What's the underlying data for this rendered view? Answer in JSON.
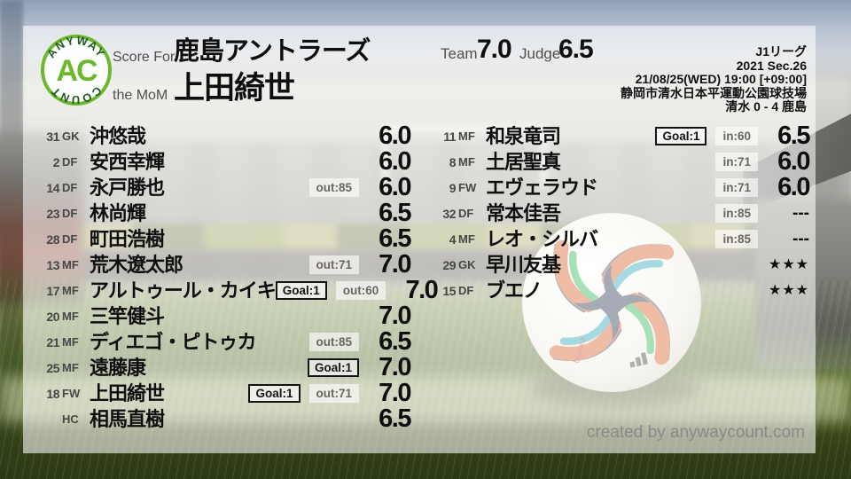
{
  "colors": {
    "brand_green": "#6cb82d",
    "logo_arc_green": "#1e5c22",
    "badge_border": "#141414",
    "text_primary": "#0e0e0e",
    "label_gray": "#4f4f4f",
    "sub_badge_gray": "#6a6661",
    "credit_gray": "#8a8a8a"
  },
  "logo": {
    "arc_top": "ANYWAY",
    "arc_bottom": "COUNT",
    "monogram": "AC"
  },
  "header": {
    "score_for_label": "Score For",
    "team_name": "鹿島アントラーズ",
    "mom_label": "the MoM",
    "mom_name": "上田綺世",
    "team_label": "Team",
    "team_score": "7.0",
    "judge_label": "Judge",
    "judge_score": "6.5"
  },
  "match_info": {
    "league": "J1リーグ",
    "round": "2021 Sec.26",
    "kickoff": "21/08/25(WED) 19:00 [+09:00]",
    "venue": "静岡市清水日本平運動公園球技場",
    "score_line": "清水 0 - 4 鹿島"
  },
  "columns": {
    "left": [
      {
        "number": "31",
        "position": "GK",
        "name": "沖悠哉",
        "badges": [],
        "rating": "6.0",
        "rating_style": "score"
      },
      {
        "number": "2",
        "position": "DF",
        "name": "安西幸輝",
        "badges": [],
        "rating": "6.0",
        "rating_style": "score"
      },
      {
        "number": "14",
        "position": "DF",
        "name": "永戸勝也",
        "badges": [
          {
            "style": "sub",
            "text": "out:85"
          }
        ],
        "rating": "6.0",
        "rating_style": "score"
      },
      {
        "number": "23",
        "position": "DF",
        "name": "林尚輝",
        "badges": [],
        "rating": "6.5",
        "rating_style": "score"
      },
      {
        "number": "28",
        "position": "DF",
        "name": "町田浩樹",
        "badges": [],
        "rating": "6.5",
        "rating_style": "score"
      },
      {
        "number": "13",
        "position": "MF",
        "name": "荒木遼太郎",
        "badges": [
          {
            "style": "sub",
            "text": "out:71"
          }
        ],
        "rating": "7.0",
        "rating_style": "score"
      },
      {
        "number": "17",
        "position": "MF",
        "name": "アルトゥール・カイキ",
        "badges": [
          {
            "style": "goal",
            "text": "Goal:1"
          },
          {
            "style": "sub",
            "text": "out:60"
          }
        ],
        "rating": "7.0",
        "rating_style": "score"
      },
      {
        "number": "20",
        "position": "MF",
        "name": "三竿健斗",
        "badges": [],
        "rating": "7.0",
        "rating_style": "score"
      },
      {
        "number": "21",
        "position": "MF",
        "name": "ディエゴ・ピトゥカ",
        "badges": [
          {
            "style": "sub",
            "text": "out:85"
          }
        ],
        "rating": "6.5",
        "rating_style": "score"
      },
      {
        "number": "25",
        "position": "MF",
        "name": "遠藤康",
        "badges": [
          {
            "style": "goal",
            "text": "Goal:1"
          }
        ],
        "rating": "7.0",
        "rating_style": "score"
      },
      {
        "number": "18",
        "position": "FW",
        "name": "上田綺世",
        "badges": [
          {
            "style": "goal",
            "text": "Goal:1"
          },
          {
            "style": "sub",
            "text": "out:71"
          }
        ],
        "rating": "7.0",
        "rating_style": "score"
      },
      {
        "number": "",
        "position": "HC",
        "name": "相馬直樹",
        "badges": [],
        "rating": "6.5",
        "rating_style": "score"
      }
    ],
    "right": [
      {
        "number": "11",
        "position": "MF",
        "name": "和泉竜司",
        "badges": [
          {
            "style": "goal",
            "text": "Goal:1"
          },
          {
            "style": "sub",
            "text": "in:60"
          }
        ],
        "rating": "6.5",
        "rating_style": "score"
      },
      {
        "number": "8",
        "position": "MF",
        "name": "土居聖真",
        "badges": [
          {
            "style": "sub",
            "text": "in:71"
          }
        ],
        "rating": "6.0",
        "rating_style": "score"
      },
      {
        "number": "9",
        "position": "FW",
        "name": "エヴェラウド",
        "badges": [
          {
            "style": "sub",
            "text": "in:71"
          }
        ],
        "rating": "6.0",
        "rating_style": "score"
      },
      {
        "number": "32",
        "position": "DF",
        "name": "常本佳吾",
        "badges": [
          {
            "style": "sub",
            "text": "in:85"
          }
        ],
        "rating": "---",
        "rating_style": "dash"
      },
      {
        "number": "4",
        "position": "MF",
        "name": "レオ・シルバ",
        "badges": [
          {
            "style": "sub",
            "text": "in:85"
          }
        ],
        "rating": "---",
        "rating_style": "dash"
      },
      {
        "number": "29",
        "position": "GK",
        "name": "早川友基",
        "badges": [],
        "rating": "★★★",
        "rating_style": "stars"
      },
      {
        "number": "15",
        "position": "DF",
        "name": "ブエノ",
        "badges": [],
        "rating": "★★★",
        "rating_style": "stars"
      }
    ]
  },
  "footer": {
    "credit": "created by anywaycount.com"
  }
}
